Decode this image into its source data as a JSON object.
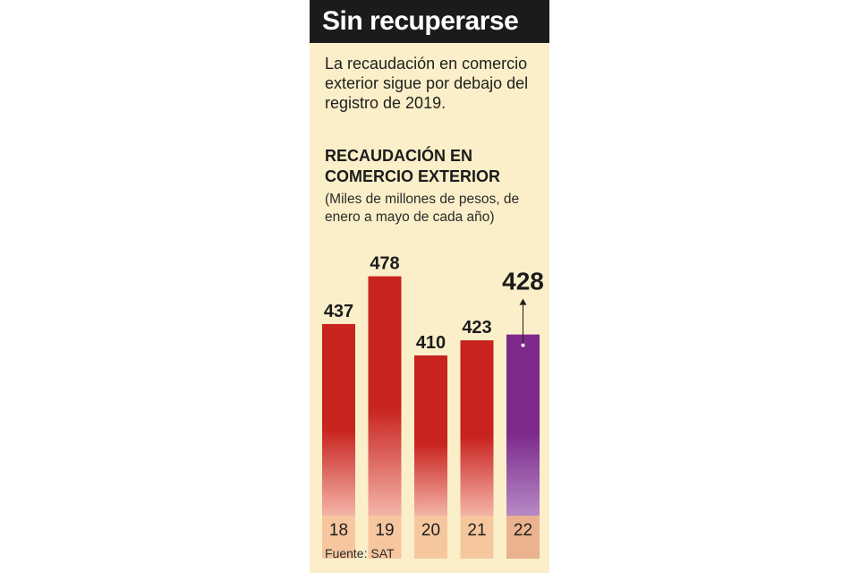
{
  "header": {
    "title": "Sin recuperarse"
  },
  "intro": "La recaudación en comercio exterior sigue por debajo del registro de 2019.",
  "source": "Fuente: SAT",
  "colors": {
    "background": "#fbefc9",
    "bar_red_dark": "#c8231f",
    "bar_red_light": "#f4b4a8",
    "bar_highlight_dark": "#7d2a8c",
    "bar_highlight_light": "#b68ac6",
    "axis_band": "#f6c79f",
    "axis_band_highlight": "#eab28e"
  },
  "chart_data": {
    "type": "bar",
    "title": "RECAUDACIÓN EN COMERCIO EXTERIOR",
    "subtitle": "(Miles de millones de pesos, de enero a mayo de cada año)",
    "categories": [
      "18",
      "19",
      "20",
      "21",
      "22"
    ],
    "values": [
      437,
      478,
      410,
      423,
      428
    ],
    "highlight_index": 4,
    "annotations": [
      {
        "category": "22",
        "marker": "up-arrow"
      }
    ]
  }
}
